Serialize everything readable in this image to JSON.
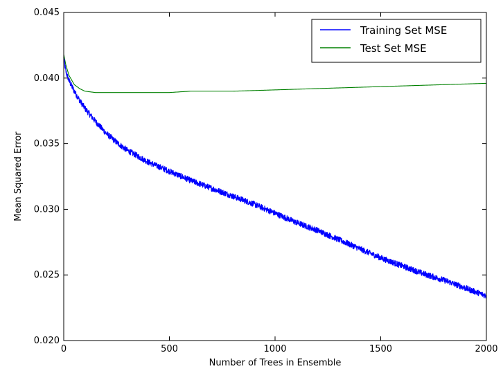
{
  "chart_data": {
    "type": "line",
    "title": "",
    "xlabel": "Number of Trees in Ensemble",
    "ylabel": "Mean Squared Error",
    "xlim": [
      0,
      2000
    ],
    "ylim": [
      0.02,
      0.045
    ],
    "xticks": [
      0,
      500,
      1000,
      1500,
      2000
    ],
    "xtick_labels": [
      "0",
      "500",
      "1000",
      "1500",
      "2000"
    ],
    "yticks": [
      0.02,
      0.025,
      0.03,
      0.035,
      0.04,
      0.045
    ],
    "ytick_labels": [
      "0.020",
      "0.025",
      "0.030",
      "0.035",
      "0.040",
      "0.045"
    ],
    "grid": false,
    "legend_position": "top-right",
    "series": [
      {
        "name": "Training Set MSE",
        "color": "#0000ff",
        "noisy": true,
        "x": [
          0,
          10,
          25,
          50,
          75,
          100,
          150,
          200,
          250,
          300,
          400,
          500,
          600,
          700,
          800,
          900,
          1000,
          1100,
          1200,
          1300,
          1400,
          1500,
          1600,
          1700,
          1800,
          1900,
          2000
        ],
        "y": [
          0.0415,
          0.0405,
          0.0398,
          0.039,
          0.0383,
          0.0377,
          0.0367,
          0.0358,
          0.0351,
          0.0345,
          0.0336,
          0.0329,
          0.0322,
          0.0316,
          0.031,
          0.0304,
          0.0297,
          0.029,
          0.0284,
          0.0277,
          0.027,
          0.0263,
          0.0257,
          0.0251,
          0.0246,
          0.024,
          0.0234
        ]
      },
      {
        "name": "Test Set MSE",
        "color": "#008000",
        "noisy": false,
        "x": [
          0,
          10,
          25,
          50,
          75,
          100,
          150,
          200,
          300,
          400,
          500,
          600,
          700,
          800,
          1000,
          1200,
          1400,
          1600,
          1800,
          2000
        ],
        "y": [
          0.0418,
          0.041,
          0.0402,
          0.0395,
          0.0392,
          0.039,
          0.0389,
          0.0389,
          0.0389,
          0.0389,
          0.0389,
          0.039,
          0.039,
          0.039,
          0.0391,
          0.0392,
          0.0393,
          0.0394,
          0.0395,
          0.0396
        ]
      }
    ]
  }
}
